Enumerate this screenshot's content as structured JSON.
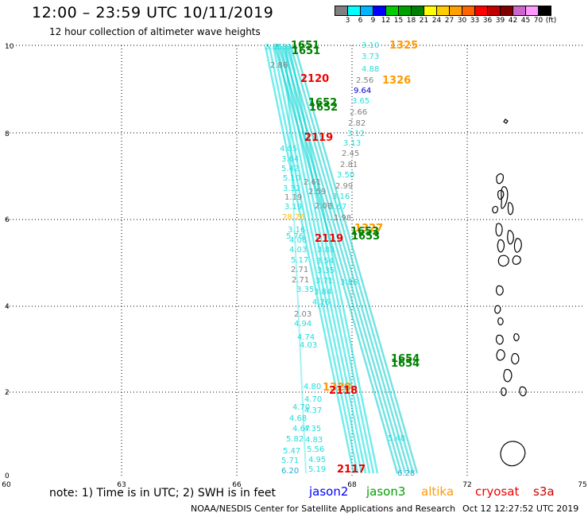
{
  "header": {
    "title": "12:00 – 23:59 UTC 10/11/2019",
    "subtitle": "12 hour collection of altimeter wave heights"
  },
  "color_scale": {
    "unit": "(ft)",
    "labels": [
      "3",
      "6",
      "9",
      "12",
      "15",
      "18",
      "21",
      "24",
      "27",
      "30",
      "33",
      "36",
      "39",
      "42",
      "45",
      "70"
    ],
    "colors": [
      "#808080",
      "#00ffff",
      "#00b4ff",
      "#0000ff",
      "#00cc00",
      "#00a000",
      "#008000",
      "#ffff00",
      "#ffcc00",
      "#ffa000",
      "#ff6400",
      "#ff0000",
      "#c00000",
      "#800000",
      "#cc66cc",
      "#ff99ff",
      "#000000"
    ]
  },
  "map": {
    "x_ticks": [
      "60",
      "63",
      "66",
      "68",
      "72",
      "75"
    ],
    "y_ticks": [
      "10",
      "8",
      "6",
      "4",
      "2",
      "0"
    ],
    "pass_labels": [
      {
        "text": "1651",
        "color": "#008000"
      },
      {
        "text": "1651",
        "color": "#008000"
      },
      {
        "text": "1325",
        "color": "#ff9900"
      },
      {
        "text": "2120",
        "color": "#ee0000"
      },
      {
        "text": "1326",
        "color": "#ff9900"
      },
      {
        "text": "1652",
        "color": "#008000"
      },
      {
        "text": "1652",
        "color": "#008000"
      },
      {
        "text": "2119",
        "color": "#ee0000"
      },
      {
        "text": "1327",
        "color": "#ff9900"
      },
      {
        "text": "1653",
        "color": "#008000"
      },
      {
        "text": "1653",
        "color": "#008000"
      },
      {
        "text": "2119",
        "color": "#ee0000"
      },
      {
        "text": "1654",
        "color": "#008000"
      },
      {
        "text": "1654",
        "color": "#008000"
      },
      {
        "text": "1328",
        "color": "#ff9900"
      },
      {
        "text": "2118",
        "color": "#ee0000"
      },
      {
        "text": "2117",
        "color": "#ee0000"
      }
    ],
    "readings": [
      {
        "text": "3.35",
        "color": "#22dddd"
      },
      {
        "text": "3.39",
        "color": "#22dddd"
      },
      {
        "text": "2.86",
        "color": "#808080"
      },
      {
        "text": "3.10",
        "color": "#22dddd"
      },
      {
        "text": "3.73",
        "color": "#22dddd"
      },
      {
        "text": "4.88",
        "color": "#22dddd"
      },
      {
        "text": "2.56",
        "color": "#808080"
      },
      {
        "text": "9.64",
        "color": "#0000cc"
      },
      {
        "text": "3.65",
        "color": "#22dddd"
      },
      {
        "text": "2.66",
        "color": "#808080"
      },
      {
        "text": "2.82",
        "color": "#808080"
      },
      {
        "text": "3.12",
        "color": "#22dddd"
      },
      {
        "text": "3.13",
        "color": "#22dddd"
      },
      {
        "text": "2.45",
        "color": "#808080"
      },
      {
        "text": "2.81",
        "color": "#808080"
      },
      {
        "text": "3.50",
        "color": "#22dddd"
      },
      {
        "text": "2.99",
        "color": "#808080"
      },
      {
        "text": "3.16",
        "color": "#22dddd"
      },
      {
        "text": "3.67",
        "color": "#22dddd"
      },
      {
        "text": "1.98",
        "color": "#808080"
      },
      {
        "text": "4.05",
        "color": "#22dddd"
      },
      {
        "text": "3.64",
        "color": "#22dddd"
      },
      {
        "text": "5.42",
        "color": "#22dddd"
      },
      {
        "text": "5.10",
        "color": "#22dddd"
      },
      {
        "text": "3.32",
        "color": "#22dddd"
      },
      {
        "text": "1.19",
        "color": "#808080"
      },
      {
        "text": "3.19",
        "color": "#22dddd"
      },
      {
        "text": "28.26",
        "color": "#ffbb00"
      },
      {
        "text": "2.61",
        "color": "#808080"
      },
      {
        "text": "2.59",
        "color": "#808080"
      },
      {
        "text": "2.08",
        "color": "#808080"
      },
      {
        "text": "3.16",
        "color": "#22dddd"
      },
      {
        "text": "4.06",
        "color": "#22dddd"
      },
      {
        "text": "4.03",
        "color": "#22dddd"
      },
      {
        "text": "5.17",
        "color": "#22dddd"
      },
      {
        "text": "2.71",
        "color": "#808080"
      },
      {
        "text": "2.71",
        "color": "#808080"
      },
      {
        "text": "3.35",
        "color": "#22dddd"
      },
      {
        "text": "3.54",
        "color": "#22dddd"
      },
      {
        "text": "3.83",
        "color": "#22dddd"
      },
      {
        "text": "3.35",
        "color": "#22dddd"
      },
      {
        "text": "3.71",
        "color": "#22dddd"
      },
      {
        "text": "3.84",
        "color": "#22dddd"
      },
      {
        "text": "4.26",
        "color": "#22dddd"
      },
      {
        "text": "3.86",
        "color": "#22dddd"
      },
      {
        "text": "2.03",
        "color": "#808080"
      },
      {
        "text": "4.94",
        "color": "#22dddd"
      },
      {
        "text": "4.74",
        "color": "#22dddd"
      },
      {
        "text": "4.03",
        "color": "#22dddd"
      },
      {
        "text": "4.80",
        "color": "#22dddd"
      },
      {
        "text": "4.70",
        "color": "#22dddd"
      },
      {
        "text": "4.37",
        "color": "#22dddd"
      },
      {
        "text": "4.70",
        "color": "#22dddd"
      },
      {
        "text": "4.68",
        "color": "#22dddd"
      },
      {
        "text": "4.67",
        "color": "#22dddd"
      },
      {
        "text": "4.35",
        "color": "#22dddd"
      },
      {
        "text": "5.82",
        "color": "#22dddd"
      },
      {
        "text": "4.83",
        "color": "#22dddd"
      },
      {
        "text": "5.47",
        "color": "#22dddd"
      },
      {
        "text": "5.56",
        "color": "#22dddd"
      },
      {
        "text": "5.71",
        "color": "#22dddd"
      },
      {
        "text": "4.95",
        "color": "#22dddd"
      },
      {
        "text": "6.20",
        "color": "#22aacc"
      },
      {
        "text": "5.19",
        "color": "#22dddd"
      },
      {
        "text": "5.48",
        "color": "#22dddd"
      },
      {
        "text": "6.28",
        "color": "#22aacc"
      },
      {
        "text": "5.76",
        "color": "#22dddd"
      }
    ]
  },
  "legend": {
    "note": "note: 1) Time is in UTC; 2) SWH is in feet",
    "items": [
      {
        "label": "jason2",
        "color": "#0000ff"
      },
      {
        "label": "jason3",
        "color": "#00a000"
      },
      {
        "label": "altika",
        "color": "#ff9900"
      },
      {
        "label": "cryosat",
        "color": "#ee0000"
      },
      {
        "label": "s3a",
        "color": "#cc0000"
      }
    ]
  },
  "footer": {
    "credit": "NOAA/NESDIS Center for Satellite Applications and Research",
    "timestamp": "Oct 12 12:27:52 UTC 2019"
  }
}
